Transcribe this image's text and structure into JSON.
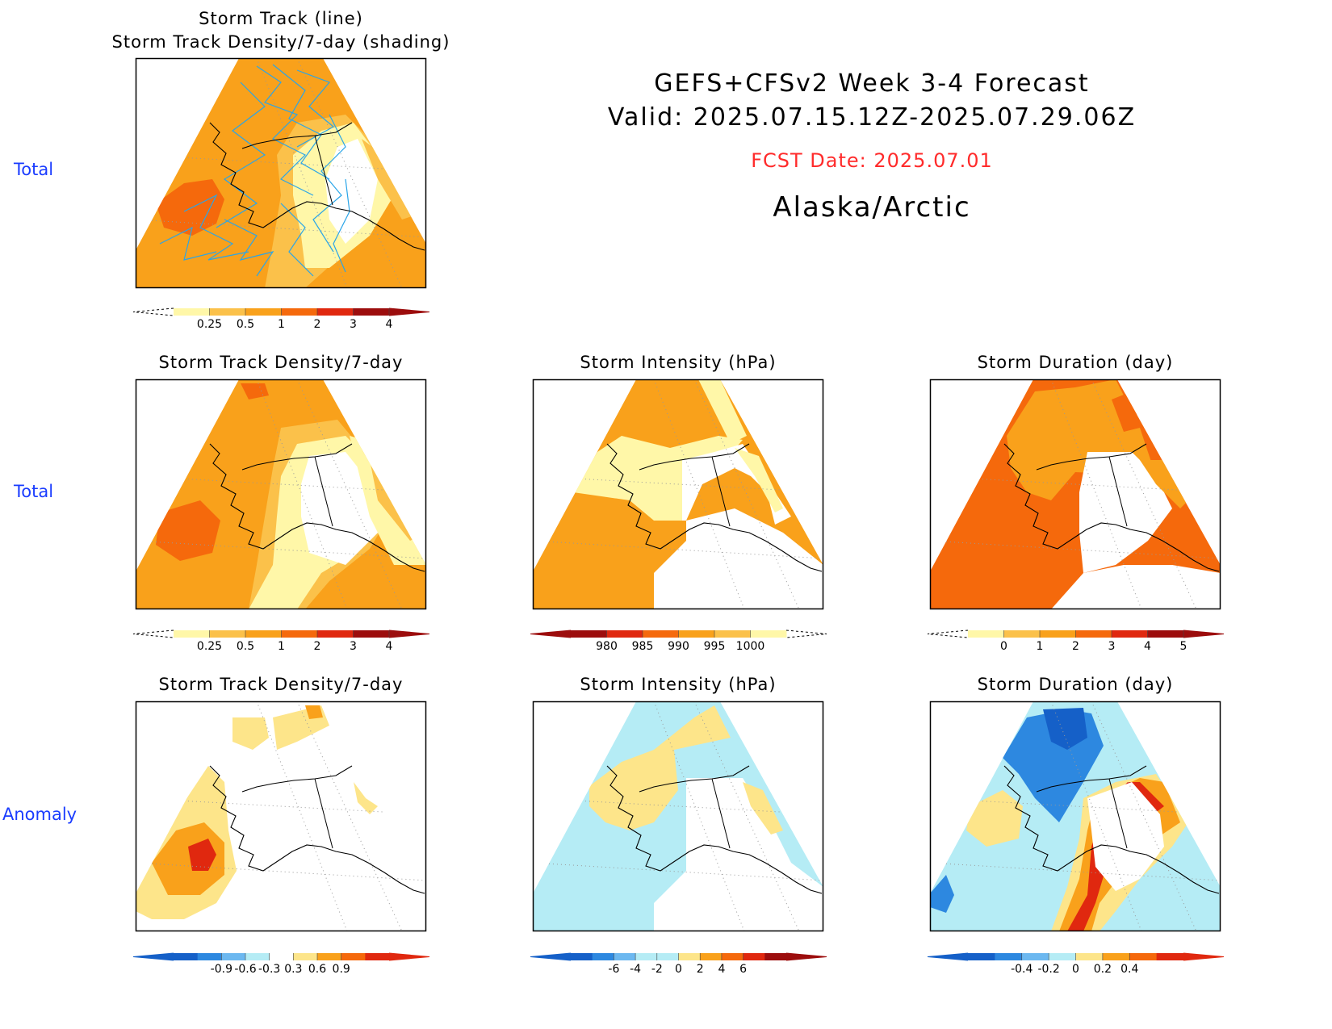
{
  "header": {
    "title_line1": "GEFS+CFSv2 Week 3-4 Forecast",
    "title_line2": "Valid: 2025.07.15.12Z-2025.07.29.06Z",
    "fcst_date": "FCST Date: 2025.07.01",
    "region": "Alaska/Arctic"
  },
  "row_labels": {
    "row1": "Total",
    "row2": "Total",
    "row3": "Anomaly"
  },
  "panel_titles": {
    "p1_line1": "Storm Track (line)",
    "p1_line2": "Storm Track Density/7-day (shading)",
    "p2": "Storm Track Density/7-day",
    "p3": "Storm Intensity (hPa)",
    "p4": "Storm Duration (day)",
    "p5": "Storm Track Density/7-day",
    "p6": "Storm Intensity (hPa)",
    "p7": "Storm Duration (day)"
  },
  "colors": {
    "row_label": "#1a3cff",
    "fcst_date": "#ff2b2b",
    "track_line": "#2aa5e8",
    "pale_yellow": "#fff7a8",
    "light_orange": "#fbc14a",
    "orange": "#f9a11b",
    "dark_orange": "#f5690c",
    "red": "#e0280f",
    "light_blue": "#b5ecf5",
    "mid_blue": "#6cb8f0",
    "blue": "#2d88e0",
    "dark_blue": "#1560c8"
  },
  "chart_data": [
    {
      "id": "p1",
      "type": "heatmap",
      "title": "Storm Track (line) / Storm Track Density/7-day (shading)",
      "colorbar": {
        "ticks": [
          "0.25",
          "0.5",
          "1",
          "2",
          "3",
          "4"
        ],
        "colors": [
          "#fff7a8",
          "#fbc14a",
          "#f9a11b",
          "#f5690c",
          "#e0280f",
          "#9c0d0d"
        ],
        "below": "dashed"
      }
    },
    {
      "id": "p2",
      "type": "heatmap",
      "title": "Storm Track Density/7-day",
      "colorbar": {
        "ticks": [
          "0.25",
          "0.5",
          "1",
          "2",
          "3",
          "4"
        ],
        "colors": [
          "#fff7a8",
          "#fbc14a",
          "#f9a11b",
          "#f5690c",
          "#e0280f",
          "#9c0d0d"
        ],
        "below": "dashed"
      }
    },
    {
      "id": "p3",
      "type": "heatmap",
      "title": "Storm Intensity (hPa)",
      "colorbar": {
        "ticks": [
          "980",
          "985",
          "990",
          "995",
          "1000"
        ],
        "colors": [
          "#9c0d0d",
          "#e0280f",
          "#f5690c",
          "#f9a11b",
          "#fbc14a",
          "#fff7a8"
        ],
        "above": "dashed"
      }
    },
    {
      "id": "p4",
      "type": "heatmap",
      "title": "Storm Duration (day)",
      "colorbar": {
        "ticks": [
          "0",
          "1",
          "2",
          "3",
          "4",
          "5"
        ],
        "colors": [
          "#fff7a8",
          "#fbc14a",
          "#f9a11b",
          "#f5690c",
          "#e0280f",
          "#9c0d0d"
        ],
        "below": "dashed"
      }
    },
    {
      "id": "p5",
      "type": "heatmap",
      "title": "Storm Track Density/7-day",
      "colorbar": {
        "ticks": [
          "-0.9",
          "-0.6",
          "-0.3",
          "0.3",
          "0.6",
          "0.9"
        ],
        "colors": [
          "#1560c8",
          "#2d88e0",
          "#6cb8f0",
          "#b5ecf5",
          "#ffffff",
          "#fde58a",
          "#f9a11b",
          "#f5690c",
          "#e0280f"
        ]
      }
    },
    {
      "id": "p6",
      "type": "heatmap",
      "title": "Storm Intensity (hPa)",
      "colorbar": {
        "ticks": [
          "-6",
          "-4",
          "-2",
          "0",
          "2",
          "4",
          "6"
        ],
        "colors": [
          "#1560c8",
          "#2d88e0",
          "#6cb8f0",
          "#b5ecf5",
          "#b5ecf5",
          "#fde58a",
          "#f9a11b",
          "#f5690c",
          "#e0280f",
          "#9c0d0d"
        ]
      }
    },
    {
      "id": "p7",
      "type": "heatmap",
      "title": "Storm Duration (day)",
      "colorbar": {
        "ticks": [
          "-0.4",
          "-0.2",
          "0",
          "0.2",
          "0.4"
        ],
        "colors": [
          "#1560c8",
          "#2d88e0",
          "#6cb8f0",
          "#b5ecf5",
          "#fde58a",
          "#f9a11b",
          "#f5690c",
          "#e0280f"
        ]
      }
    }
  ]
}
